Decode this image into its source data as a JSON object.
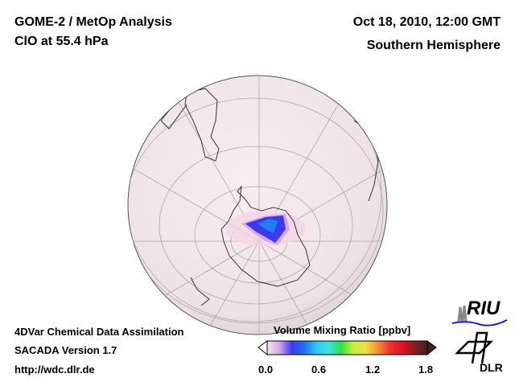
{
  "header": {
    "title": "GOME‑2 / MetOp Analysis",
    "subtitle": "ClO at 55.4 hPa",
    "datetime": "Oct 18, 2010, 12:00 GMT",
    "region": "Southern Hemisphere"
  },
  "footer": {
    "line1": "4DVar Chemical Data Assimilation",
    "line2": "SACADA Version 1.7",
    "url": "http://wdc.dlr.de"
  },
  "colorbar": {
    "title": "Volume Mixing Ratio [ppbv]",
    "ticks": [
      "0.0",
      "0.6",
      "1.2",
      "1.8"
    ],
    "range": [
      0.0,
      1.8
    ],
    "colors": [
      "#f3e6ee",
      "#d7a6e8",
      "#3a3af0",
      "#1e6ef0",
      "#30c8f0",
      "#40e0e0",
      "#30e040",
      "#c8f040",
      "#f0e040",
      "#f09030",
      "#f03030",
      "#e01020",
      "#802020",
      "#402020"
    ]
  },
  "logos": {
    "riu": "RIU",
    "dlr": "DLR"
  }
}
